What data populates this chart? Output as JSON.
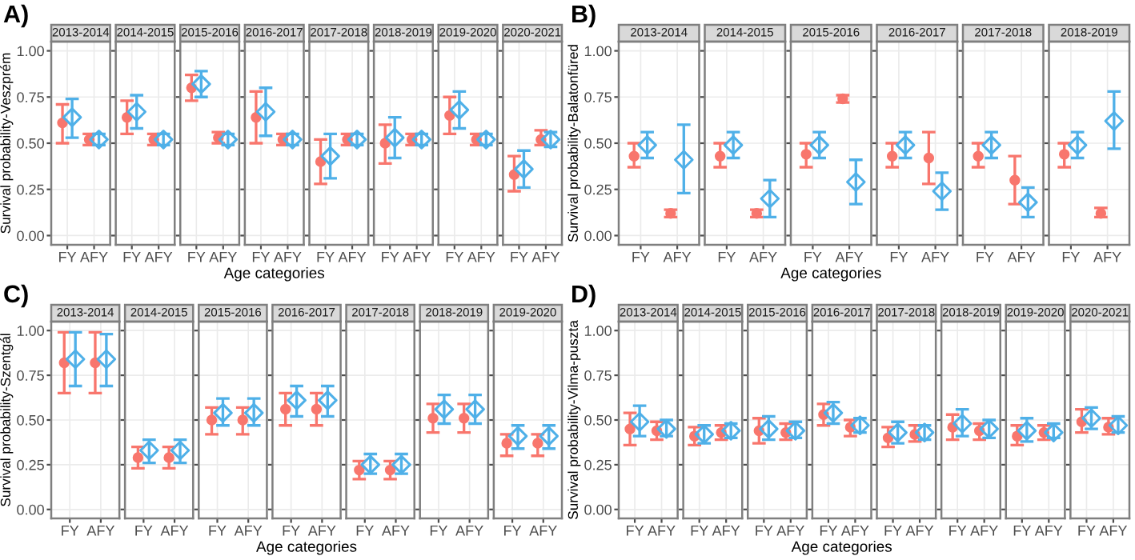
{
  "chart_data": [
    {
      "type": "scatter",
      "title": "2013-2014",
      "ylabel": "Survival probability-Veszprém",
      "annotations": [
        "A)"
      ],
      "categories": [
        "FY",
        "AFY"
      ],
      "ylim": [
        -0.05,
        1.05
      ],
      "yticks": [
        {
          "value": 0,
          "label": "0.00"
        },
        {
          "value": 0.25,
          "label": "0.25"
        },
        {
          "value": 0.5,
          "label": "0.50"
        },
        {
          "value": 0.75,
          "label": "0.75"
        },
        {
          "value": 1,
          "label": "1.00"
        }
      ],
      "grid": true,
      "series": [
        {
          "color": "#f8766d",
          "marker": "circle",
          "values": [
            0.61,
            0.52
          ],
          "errors": [
            [
              0.5,
              0.71
            ],
            [
              0.49,
              0.55
            ]
          ]
        },
        {
          "color": "#4fb0e8",
          "marker": "diamond",
          "values": [
            0.64,
            0.52
          ],
          "errors": [
            [
              0.53,
              0.74
            ],
            [
              0.49,
              0.55
            ]
          ]
        }
      ]
    },
    {
      "type": "scatter",
      "title": "2014-2015",
      "categories": [
        "FY",
        "AFY"
      ],
      "ylim": [
        -0.05,
        1.05
      ],
      "yticks": [
        0,
        0.25,
        0.5,
        0.75,
        1
      ],
      "grid": true,
      "tick_labels": "x",
      "series": [
        {
          "color": "#f8766d",
          "marker": "circle",
          "values": [
            0.64,
            0.52
          ],
          "errors": [
            [
              0.55,
              0.73
            ],
            [
              0.49,
              0.55
            ]
          ]
        },
        {
          "color": "#4fb0e8",
          "marker": "diamond",
          "values": [
            0.67,
            0.52
          ],
          "errors": [
            [
              0.58,
              0.76
            ],
            [
              0.49,
              0.55
            ]
          ]
        }
      ]
    },
    {
      "type": "scatter",
      "title": "2015-2016",
      "categories": [
        "FY",
        "AFY"
      ],
      "ylim": [
        -0.05,
        1.05
      ],
      "yticks": [
        0,
        0.25,
        0.5,
        0.75,
        1
      ],
      "grid": true,
      "tick_labels": "x",
      "series": [
        {
          "color": "#f8766d",
          "marker": "circle",
          "values": [
            0.8,
            0.53
          ],
          "errors": [
            [
              0.73,
              0.87
            ],
            [
              0.5,
              0.56
            ]
          ]
        },
        {
          "color": "#4fb0e8",
          "marker": "diamond",
          "values": [
            0.82,
            0.52
          ],
          "errors": [
            [
              0.75,
              0.89
            ],
            [
              0.49,
              0.55
            ]
          ]
        }
      ]
    },
    {
      "type": "scatter",
      "title": "2016-2017",
      "xlabel": "Age categories",
      "categories": [
        "FY",
        "AFY"
      ],
      "ylim": [
        -0.05,
        1.05
      ],
      "yticks": [
        0,
        0.25,
        0.5,
        0.75,
        1
      ],
      "grid": true,
      "tick_labels": "x",
      "series": [
        {
          "color": "#f8766d",
          "marker": "circle",
          "values": [
            0.64,
            0.52
          ],
          "errors": [
            [
              0.5,
              0.78
            ],
            [
              0.49,
              0.55
            ]
          ]
        },
        {
          "color": "#4fb0e8",
          "marker": "diamond",
          "values": [
            0.67,
            0.52
          ],
          "errors": [
            [
              0.54,
              0.8
            ],
            [
              0.49,
              0.55
            ]
          ]
        }
      ]
    },
    {
      "type": "scatter",
      "title": "2017-2018",
      "categories": [
        "FY",
        "AFY"
      ],
      "ylim": [
        -0.05,
        1.05
      ],
      "yticks": [
        0,
        0.25,
        0.5,
        0.75,
        1
      ],
      "grid": true,
      "tick_labels": "x",
      "series": [
        {
          "color": "#f8766d",
          "marker": "circle",
          "values": [
            0.4,
            0.52
          ],
          "errors": [
            [
              0.28,
              0.52
            ],
            [
              0.49,
              0.55
            ]
          ]
        },
        {
          "color": "#4fb0e8",
          "marker": "diamond",
          "values": [
            0.43,
            0.52
          ],
          "errors": [
            [
              0.31,
              0.55
            ],
            [
              0.49,
              0.55
            ]
          ]
        }
      ]
    },
    {
      "type": "scatter",
      "title": "2018-2019",
      "categories": [
        "FY",
        "AFY"
      ],
      "ylim": [
        -0.05,
        1.05
      ],
      "yticks": [
        0,
        0.25,
        0.5,
        0.75,
        1
      ],
      "grid": true,
      "tick_labels": "x",
      "series": [
        {
          "color": "#f8766d",
          "marker": "circle",
          "values": [
            0.5,
            0.52
          ],
          "errors": [
            [
              0.39,
              0.6
            ],
            [
              0.49,
              0.55
            ]
          ]
        },
        {
          "color": "#4fb0e8",
          "marker": "diamond",
          "values": [
            0.53,
            0.52
          ],
          "errors": [
            [
              0.42,
              0.64
            ],
            [
              0.49,
              0.55
            ]
          ]
        }
      ]
    },
    {
      "type": "scatter",
      "title": "2019-2020",
      "categories": [
        "FY",
        "AFY"
      ],
      "ylim": [
        -0.05,
        1.05
      ],
      "yticks": [
        0,
        0.25,
        0.5,
        0.75,
        1
      ],
      "grid": true,
      "tick_labels": "x",
      "series": [
        {
          "color": "#f8766d",
          "marker": "circle",
          "values": [
            0.65,
            0.52
          ],
          "errors": [
            [
              0.55,
              0.75
            ],
            [
              0.49,
              0.55
            ]
          ]
        },
        {
          "color": "#4fb0e8",
          "marker": "diamond",
          "values": [
            0.68,
            0.52
          ],
          "errors": [
            [
              0.58,
              0.78
            ],
            [
              0.49,
              0.55
            ]
          ]
        }
      ]
    },
    {
      "type": "scatter",
      "title": "2020-2021",
      "categories": [
        "FY",
        "AFY"
      ],
      "ylim": [
        -0.05,
        1.05
      ],
      "yticks": [
        0,
        0.25,
        0.5,
        0.75,
        1
      ],
      "grid": true,
      "tick_labels": "x",
      "series": [
        {
          "color": "#f8766d",
          "marker": "circle",
          "values": [
            0.33,
            0.52
          ],
          "errors": [
            [
              0.24,
              0.43
            ],
            [
              0.49,
              0.57
            ]
          ]
        },
        {
          "color": "#4fb0e8",
          "marker": "diamond",
          "values": [
            0.36,
            0.52
          ],
          "errors": [
            [
              0.26,
              0.46
            ],
            [
              0.48,
              0.56
            ]
          ]
        }
      ]
    },
    {
      "type": "scatter",
      "title": "2013-2014",
      "ylabel": "Survival probability-Balatonfüred",
      "annotations": [
        "B)"
      ],
      "categories": [
        "FY",
        "AFY"
      ],
      "ylim": [
        -0.05,
        1.05
      ],
      "yticks": [
        {
          "value": 0,
          "label": "0.00"
        },
        {
          "value": 0.25,
          "label": "0.25"
        },
        {
          "value": 0.5,
          "label": "0.50"
        },
        {
          "value": 0.75,
          "label": "0.75"
        },
        {
          "value": 1,
          "label": "1.00"
        }
      ],
      "grid": true,
      "series": [
        {
          "color": "#f8766d",
          "marker": "circle",
          "values": [
            0.43,
            0.12
          ],
          "errors": [
            [
              0.37,
              0.5
            ],
            [
              0.1,
              0.14
            ]
          ]
        },
        {
          "color": "#4fb0e8",
          "marker": "diamond",
          "values": [
            0.49,
            0.41
          ],
          "errors": [
            [
              0.42,
              0.56
            ],
            [
              0.23,
              0.6
            ]
          ]
        }
      ]
    },
    {
      "type": "scatter",
      "title": "2014-2015",
      "categories": [
        "FY",
        "AFY"
      ],
      "ylim": [
        -0.05,
        1.05
      ],
      "yticks": [
        0,
        0.25,
        0.5,
        0.75,
        1
      ],
      "grid": true,
      "tick_labels": "x",
      "series": [
        {
          "color": "#f8766d",
          "marker": "circle",
          "values": [
            0.43,
            0.12
          ],
          "errors": [
            [
              0.37,
              0.5
            ],
            [
              0.1,
              0.14
            ]
          ]
        },
        {
          "color": "#4fb0e8",
          "marker": "diamond",
          "values": [
            0.49,
            0.2
          ],
          "errors": [
            [
              0.42,
              0.56
            ],
            [
              0.1,
              0.3
            ]
          ]
        }
      ]
    },
    {
      "type": "scatter",
      "title": "2015-2016",
      "xlabel": "Age categories",
      "categories": [
        "FY",
        "AFY"
      ],
      "ylim": [
        -0.05,
        1.05
      ],
      "yticks": [
        0,
        0.25,
        0.5,
        0.75,
        1
      ],
      "grid": true,
      "tick_labels": "x",
      "series": [
        {
          "color": "#f8766d",
          "marker": "circle",
          "values": [
            0.44,
            0.74
          ],
          "errors": [
            [
              0.37,
              0.5
            ],
            [
              0.72,
              0.76
            ]
          ]
        },
        {
          "color": "#4fb0e8",
          "marker": "diamond",
          "values": [
            0.49,
            0.29
          ],
          "errors": [
            [
              0.42,
              0.56
            ],
            [
              0.17,
              0.41
            ]
          ]
        }
      ]
    },
    {
      "type": "scatter",
      "title": "2016-2017",
      "categories": [
        "FY",
        "AFY"
      ],
      "ylim": [
        -0.05,
        1.05
      ],
      "yticks": [
        0,
        0.25,
        0.5,
        0.75,
        1
      ],
      "grid": true,
      "tick_labels": "x",
      "series": [
        {
          "color": "#f8766d",
          "marker": "circle",
          "values": [
            0.43,
            0.42
          ],
          "errors": [
            [
              0.37,
              0.5
            ],
            [
              0.28,
              0.56
            ]
          ]
        },
        {
          "color": "#4fb0e8",
          "marker": "diamond",
          "values": [
            0.49,
            0.24
          ],
          "errors": [
            [
              0.42,
              0.56
            ],
            [
              0.14,
              0.34
            ]
          ]
        }
      ]
    },
    {
      "type": "scatter",
      "title": "2017-2018",
      "categories": [
        "FY",
        "AFY"
      ],
      "ylim": [
        -0.05,
        1.05
      ],
      "yticks": [
        0,
        0.25,
        0.5,
        0.75,
        1
      ],
      "grid": true,
      "tick_labels": "x",
      "series": [
        {
          "color": "#f8766d",
          "marker": "circle",
          "values": [
            0.43,
            0.3
          ],
          "errors": [
            [
              0.37,
              0.5
            ],
            [
              0.17,
              0.43
            ]
          ]
        },
        {
          "color": "#4fb0e8",
          "marker": "diamond",
          "values": [
            0.49,
            0.18
          ],
          "errors": [
            [
              0.42,
              0.56
            ],
            [
              0.1,
              0.26
            ]
          ]
        }
      ]
    },
    {
      "type": "scatter",
      "title": "2018-2019",
      "categories": [
        "FY",
        "AFY"
      ],
      "ylim": [
        -0.05,
        1.05
      ],
      "yticks": [
        0,
        0.25,
        0.5,
        0.75,
        1
      ],
      "grid": true,
      "tick_labels": "x",
      "series": [
        {
          "color": "#f8766d",
          "marker": "circle",
          "values": [
            0.44,
            0.12
          ],
          "errors": [
            [
              0.37,
              0.5
            ],
            [
              0.1,
              0.15
            ]
          ]
        },
        {
          "color": "#4fb0e8",
          "marker": "diamond",
          "values": [
            0.49,
            0.62
          ],
          "errors": [
            [
              0.42,
              0.56
            ],
            [
              0.47,
              0.78
            ]
          ]
        }
      ]
    },
    {
      "type": "scatter",
      "title": "2013-2014",
      "ylabel": "Survival probability-Szentgál",
      "annotations": [
        "C)"
      ],
      "categories": [
        "FY",
        "AFY"
      ],
      "ylim": [
        -0.05,
        1.05
      ],
      "yticks": [
        {
          "value": 0,
          "label": "0.00"
        },
        {
          "value": 0.25,
          "label": "0.25"
        },
        {
          "value": 0.5,
          "label": "0.50"
        },
        {
          "value": 0.75,
          "label": "0.75"
        },
        {
          "value": 1,
          "label": "1.00"
        }
      ],
      "grid": true,
      "series": [
        {
          "color": "#f8766d",
          "marker": "circle",
          "values": [
            0.82,
            0.82
          ],
          "errors": [
            [
              0.65,
              0.99
            ],
            [
              0.65,
              0.99
            ]
          ]
        },
        {
          "color": "#4fb0e8",
          "marker": "diamond",
          "values": [
            0.84,
            0.84
          ],
          "errors": [
            [
              0.69,
              0.99
            ],
            [
              0.69,
              0.98
            ]
          ]
        }
      ]
    },
    {
      "type": "scatter",
      "title": "2014-2015",
      "categories": [
        "FY",
        "AFY"
      ],
      "ylim": [
        -0.05,
        1.05
      ],
      "yticks": [
        0,
        0.25,
        0.5,
        0.75,
        1
      ],
      "grid": true,
      "tick_labels": "x",
      "series": [
        {
          "color": "#f8766d",
          "marker": "circle",
          "values": [
            0.29,
            0.29
          ],
          "errors": [
            [
              0.23,
              0.35
            ],
            [
              0.23,
              0.35
            ]
          ]
        },
        {
          "color": "#4fb0e8",
          "marker": "diamond",
          "values": [
            0.33,
            0.33
          ],
          "errors": [
            [
              0.26,
              0.39
            ],
            [
              0.26,
              0.39
            ]
          ]
        }
      ]
    },
    {
      "type": "scatter",
      "title": "2015-2016",
      "categories": [
        "FY",
        "AFY"
      ],
      "ylim": [
        -0.05,
        1.05
      ],
      "yticks": [
        0,
        0.25,
        0.5,
        0.75,
        1
      ],
      "grid": true,
      "tick_labels": "x",
      "series": [
        {
          "color": "#f8766d",
          "marker": "circle",
          "values": [
            0.5,
            0.5
          ],
          "errors": [
            [
              0.42,
              0.57
            ],
            [
              0.42,
              0.57
            ]
          ]
        },
        {
          "color": "#4fb0e8",
          "marker": "diamond",
          "values": [
            0.54,
            0.54
          ],
          "errors": [
            [
              0.47,
              0.62
            ],
            [
              0.47,
              0.62
            ]
          ]
        }
      ]
    },
    {
      "type": "scatter",
      "title": "2016-2017",
      "xlabel": "Age categories",
      "categories": [
        "FY",
        "AFY"
      ],
      "ylim": [
        -0.05,
        1.05
      ],
      "yticks": [
        0,
        0.25,
        0.5,
        0.75,
        1
      ],
      "grid": true,
      "tick_labels": "x",
      "series": [
        {
          "color": "#f8766d",
          "marker": "circle",
          "values": [
            0.56,
            0.56
          ],
          "errors": [
            [
              0.47,
              0.65
            ],
            [
              0.47,
              0.65
            ]
          ]
        },
        {
          "color": "#4fb0e8",
          "marker": "diamond",
          "values": [
            0.61,
            0.61
          ],
          "errors": [
            [
              0.52,
              0.69
            ],
            [
              0.52,
              0.69
            ]
          ]
        }
      ]
    },
    {
      "type": "scatter",
      "title": "2017-2018",
      "categories": [
        "FY",
        "AFY"
      ],
      "ylim": [
        -0.05,
        1.05
      ],
      "yticks": [
        0,
        0.25,
        0.5,
        0.75,
        1
      ],
      "grid": true,
      "tick_labels": "x",
      "series": [
        {
          "color": "#f8766d",
          "marker": "circle",
          "values": [
            0.22,
            0.22
          ],
          "errors": [
            [
              0.17,
              0.27
            ],
            [
              0.17,
              0.27
            ]
          ]
        },
        {
          "color": "#4fb0e8",
          "marker": "diamond",
          "values": [
            0.25,
            0.25
          ],
          "errors": [
            [
              0.2,
              0.31
            ],
            [
              0.2,
              0.31
            ]
          ]
        }
      ]
    },
    {
      "type": "scatter",
      "title": "2018-2019",
      "categories": [
        "FY",
        "AFY"
      ],
      "ylim": [
        -0.05,
        1.05
      ],
      "yticks": [
        0,
        0.25,
        0.5,
        0.75,
        1
      ],
      "grid": true,
      "tick_labels": "x",
      "series": [
        {
          "color": "#f8766d",
          "marker": "circle",
          "values": [
            0.51,
            0.51
          ],
          "errors": [
            [
              0.43,
              0.59
            ],
            [
              0.43,
              0.59
            ]
          ]
        },
        {
          "color": "#4fb0e8",
          "marker": "diamond",
          "values": [
            0.56,
            0.56
          ],
          "errors": [
            [
              0.48,
              0.64
            ],
            [
              0.48,
              0.64
            ]
          ]
        }
      ]
    },
    {
      "type": "scatter",
      "title": "2019-2020",
      "categories": [
        "FY",
        "AFY"
      ],
      "ylim": [
        -0.05,
        1.05
      ],
      "yticks": [
        0,
        0.25,
        0.5,
        0.75,
        1
      ],
      "grid": true,
      "tick_labels": "x",
      "series": [
        {
          "color": "#f8766d",
          "marker": "circle",
          "values": [
            0.37,
            0.37
          ],
          "errors": [
            [
              0.3,
              0.42
            ],
            [
              0.3,
              0.42
            ]
          ]
        },
        {
          "color": "#4fb0e8",
          "marker": "diamond",
          "values": [
            0.41,
            0.41
          ],
          "errors": [
            [
              0.34,
              0.47
            ],
            [
              0.34,
              0.47
            ]
          ]
        }
      ]
    },
    {
      "type": "scatter",
      "title": "2013-2014",
      "ylabel": "Survival probability-Vilma-puszta",
      "annotations": [
        "D)"
      ],
      "categories": [
        "FY",
        "AFY"
      ],
      "ylim": [
        -0.05,
        1.05
      ],
      "yticks": [
        {
          "value": 0,
          "label": "0.00"
        },
        {
          "value": 0.25,
          "label": "0.25"
        },
        {
          "value": 0.5,
          "label": "0.50"
        },
        {
          "value": 0.75,
          "label": "0.75"
        },
        {
          "value": 1,
          "label": "1.00"
        }
      ],
      "grid": true,
      "series": [
        {
          "color": "#f8766d",
          "marker": "circle",
          "values": [
            0.45,
            0.44
          ],
          "errors": [
            [
              0.36,
              0.54
            ],
            [
              0.39,
              0.49
            ]
          ]
        },
        {
          "color": "#4fb0e8",
          "marker": "diamond",
          "values": [
            0.49,
            0.45
          ],
          "errors": [
            [
              0.41,
              0.58
            ],
            [
              0.41,
              0.5
            ]
          ]
        }
      ]
    },
    {
      "type": "scatter",
      "title": "2014-2015",
      "categories": [
        "FY",
        "AFY"
      ],
      "ylim": [
        -0.05,
        1.05
      ],
      "yticks": [
        0,
        0.25,
        0.5,
        0.75,
        1
      ],
      "grid": true,
      "tick_labels": "x",
      "series": [
        {
          "color": "#f8766d",
          "marker": "circle",
          "values": [
            0.41,
            0.43
          ],
          "errors": [
            [
              0.36,
              0.46
            ],
            [
              0.39,
              0.47
            ]
          ]
        },
        {
          "color": "#4fb0e8",
          "marker": "diamond",
          "values": [
            0.42,
            0.44
          ],
          "errors": [
            [
              0.37,
              0.47
            ],
            [
              0.4,
              0.48
            ]
          ]
        }
      ]
    },
    {
      "type": "scatter",
      "title": "2015-2016",
      "categories": [
        "FY",
        "AFY"
      ],
      "ylim": [
        -0.05,
        1.05
      ],
      "yticks": [
        0,
        0.25,
        0.5,
        0.75,
        1
      ],
      "grid": true,
      "tick_labels": "x",
      "series": [
        {
          "color": "#f8766d",
          "marker": "circle",
          "values": [
            0.44,
            0.43
          ],
          "errors": [
            [
              0.37,
              0.51
            ],
            [
              0.39,
              0.48
            ]
          ]
        },
        {
          "color": "#4fb0e8",
          "marker": "diamond",
          "values": [
            0.45,
            0.44
          ],
          "errors": [
            [
              0.39,
              0.52
            ],
            [
              0.4,
              0.49
            ]
          ]
        }
      ]
    },
    {
      "type": "scatter",
      "title": "2016-2017",
      "xlabel": "Age categories",
      "categories": [
        "FY",
        "AFY"
      ],
      "ylim": [
        -0.05,
        1.05
      ],
      "yticks": [
        0,
        0.25,
        0.5,
        0.75,
        1
      ],
      "grid": true,
      "tick_labels": "x",
      "series": [
        {
          "color": "#f8766d",
          "marker": "circle",
          "values": [
            0.53,
            0.46
          ],
          "errors": [
            [
              0.47,
              0.59
            ],
            [
              0.41,
              0.5
            ]
          ]
        },
        {
          "color": "#4fb0e8",
          "marker": "diamond",
          "values": [
            0.54,
            0.47
          ],
          "errors": [
            [
              0.48,
              0.6
            ],
            [
              0.43,
              0.51
            ]
          ]
        }
      ]
    },
    {
      "type": "scatter",
      "title": "2017-2018",
      "categories": [
        "FY",
        "AFY"
      ],
      "ylim": [
        -0.05,
        1.05
      ],
      "yticks": [
        0,
        0.25,
        0.5,
        0.75,
        1
      ],
      "grid": true,
      "tick_labels": "x",
      "series": [
        {
          "color": "#f8766d",
          "marker": "circle",
          "values": [
            0.4,
            0.42
          ],
          "errors": [
            [
              0.35,
              0.46
            ],
            [
              0.38,
              0.47
            ]
          ]
        },
        {
          "color": "#4fb0e8",
          "marker": "diamond",
          "values": [
            0.43,
            0.43
          ],
          "errors": [
            [
              0.37,
              0.49
            ],
            [
              0.39,
              0.47
            ]
          ]
        }
      ]
    },
    {
      "type": "scatter",
      "title": "2018-2019",
      "categories": [
        "FY",
        "AFY"
      ],
      "ylim": [
        -0.05,
        1.05
      ],
      "yticks": [
        0,
        0.25,
        0.5,
        0.75,
        1
      ],
      "grid": true,
      "tick_labels": "x",
      "series": [
        {
          "color": "#f8766d",
          "marker": "circle",
          "values": [
            0.46,
            0.44
          ],
          "errors": [
            [
              0.39,
              0.53
            ],
            [
              0.39,
              0.48
            ]
          ]
        },
        {
          "color": "#4fb0e8",
          "marker": "diamond",
          "values": [
            0.48,
            0.45
          ],
          "errors": [
            [
              0.41,
              0.56
            ],
            [
              0.4,
              0.5
            ]
          ]
        }
      ]
    },
    {
      "type": "scatter",
      "title": "2019-2020",
      "categories": [
        "FY",
        "AFY"
      ],
      "ylim": [
        -0.05,
        1.05
      ],
      "yticks": [
        0,
        0.25,
        0.5,
        0.75,
        1
      ],
      "grid": true,
      "tick_labels": "x",
      "series": [
        {
          "color": "#f8766d",
          "marker": "circle",
          "values": [
            0.41,
            0.43
          ],
          "errors": [
            [
              0.36,
              0.47
            ],
            [
              0.39,
              0.47
            ]
          ]
        },
        {
          "color": "#4fb0e8",
          "marker": "diamond",
          "values": [
            0.44,
            0.43
          ],
          "errors": [
            [
              0.38,
              0.51
            ],
            [
              0.4,
              0.48
            ]
          ]
        }
      ]
    },
    {
      "type": "scatter",
      "title": "2020-2021",
      "categories": [
        "FY",
        "AFY"
      ],
      "ylim": [
        -0.05,
        1.05
      ],
      "yticks": [
        0,
        0.25,
        0.5,
        0.75,
        1
      ],
      "grid": true,
      "tick_labels": "x",
      "series": [
        {
          "color": "#f8766d",
          "marker": "circle",
          "values": [
            0.49,
            0.46
          ],
          "errors": [
            [
              0.43,
              0.56
            ],
            [
              0.42,
              0.51
            ]
          ]
        },
        {
          "color": "#4fb0e8",
          "marker": "diamond",
          "values": [
            0.51,
            0.47
          ],
          "errors": [
            [
              0.45,
              0.57
            ],
            [
              0.43,
              0.52
            ]
          ]
        }
      ]
    }
  ]
}
